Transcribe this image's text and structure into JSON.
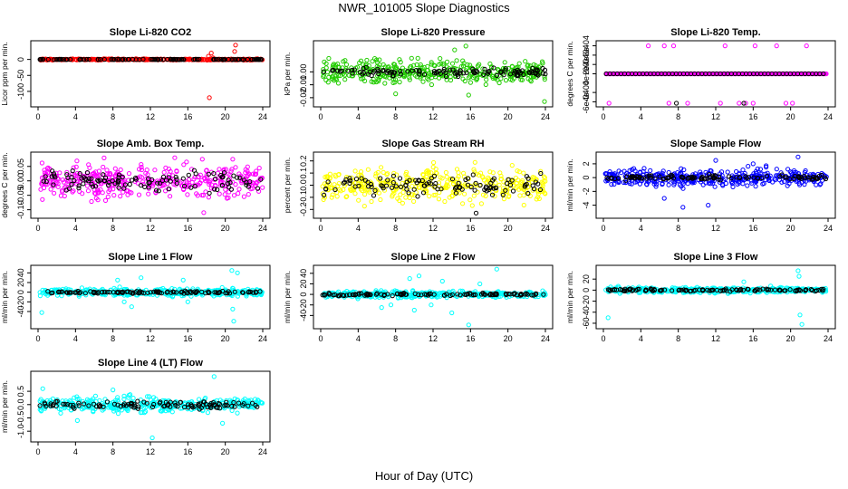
{
  "page": {
    "title": "NWR_101005  Slope Diagnostics",
    "xlabel": "Hour of Day (UTC)"
  },
  "colors": {
    "red": "#ff0000",
    "green": "#22cc00",
    "magenta": "#ff00ff",
    "yellow": "#ffff00",
    "blue": "#0000ff",
    "cyan": "#00ffff",
    "black": "#000000"
  },
  "chart_data": [
    {
      "type": "scatter",
      "title": "Slope Li-820 CO2",
      "ylabel": "Licor ppm per min.",
      "xlabel": "",
      "xlim": [
        0,
        24
      ],
      "ylim": [
        -140,
        50
      ],
      "x_ticks": [
        "0",
        "4",
        "8",
        "12",
        "16",
        "20",
        "24"
      ],
      "y_ticks": [
        "0",
        "-50",
        "-100"
      ],
      "y_tick_values": [
        0,
        -50,
        -100
      ],
      "series": [
        {
          "color": "red",
          "base": 0,
          "spread": 1.5,
          "points": [
            [
              18.3,
              -120
            ],
            [
              18.5,
              20
            ],
            [
              18.2,
              10
            ],
            [
              21.1,
              45
            ],
            [
              21.0,
              25
            ],
            [
              18.7,
              5
            ],
            [
              21.3,
              0
            ]
          ]
        },
        {
          "color": "black",
          "base": 0,
          "spread": 0.5,
          "points": []
        }
      ]
    },
    {
      "type": "scatter",
      "title": "Slope Li-820 Pressure",
      "ylabel": "kPa per min.",
      "xlabel": "",
      "xlim": [
        0,
        24
      ],
      "ylim": [
        -0.025,
        0.022
      ],
      "x_ticks": [
        "0",
        "4",
        "8",
        "12",
        "16",
        "20",
        "24"
      ],
      "y_ticks": [
        "0.00",
        "-0.01",
        "-0.02"
      ],
      "y_tick_values": [
        0.0,
        -0.01,
        -0.02
      ],
      "series": [
        {
          "color": "green",
          "base": 0,
          "spread": 0.007,
          "points": [
            [
              23.9,
              -0.023
            ],
            [
              15.5,
              0.02
            ],
            [
              14.3,
              0.017
            ],
            [
              15.8,
              -0.018
            ],
            [
              8.0,
              -0.017
            ],
            [
              0.8,
              -0.008
            ]
          ]
        },
        {
          "color": "black",
          "base": 0,
          "spread": 0.003,
          "points": []
        }
      ]
    },
    {
      "type": "scatter",
      "title": "Slope Li-820 Temp.",
      "ylabel": "degrees C per min.",
      "xlabel": "",
      "xlim": [
        0,
        24
      ],
      "ylim": [
        -0.00065,
        0.00065
      ],
      "x_ticks": [
        "0",
        "4",
        "8",
        "12",
        "16",
        "20",
        "24"
      ],
      "y_ticks": [
        "6e-04",
        "4e-04",
        "2e-04",
        "0e+00",
        "-4e-04",
        "-6e-04"
      ],
      "y_tick_values": [
        0.0006,
        0.0004,
        0.0002,
        0.0,
        -0.0004,
        -0.0006
      ],
      "series": [
        {
          "color": "magenta",
          "base": 0,
          "spread": 0,
          "points": [
            [
              6.5,
              0.0006
            ],
            [
              7.5,
              0.0006
            ],
            [
              13.0,
              0.0006
            ],
            [
              16.2,
              0.0006
            ],
            [
              18.5,
              0.0006
            ],
            [
              21.7,
              0.0006
            ],
            [
              7.0,
              -0.00063
            ],
            [
              9.0,
              -0.00063
            ],
            [
              12.5,
              -0.00063
            ],
            [
              14.5,
              -0.00063
            ],
            [
              15.2,
              -0.00063
            ],
            [
              16.0,
              -0.00063
            ],
            [
              19.5,
              -0.00063
            ],
            [
              20.2,
              -0.00063
            ],
            [
              4.8,
              0.0006
            ],
            [
              0.6,
              -0.00063
            ]
          ]
        },
        {
          "color": "black",
          "base": 0,
          "spread": 0,
          "points": [
            [
              7.8,
              -0.00063
            ],
            [
              15.0,
              -0.00063
            ]
          ]
        }
      ]
    },
    {
      "type": "scatter",
      "title": "Slope Amb. Box Temp.",
      "ylabel": "degrees C per min.",
      "xlabel": "",
      "xlim": [
        0,
        24
      ],
      "ylim": [
        -0.12,
        0.09
      ],
      "x_ticks": [
        "0",
        "4",
        "8",
        "12",
        "16",
        "20",
        "24"
      ],
      "y_ticks": [
        "0.05",
        "0.00",
        "-0.05",
        "-0.10"
      ],
      "y_tick_values": [
        0.05,
        0.0,
        -0.05,
        -0.1
      ],
      "series": [
        {
          "color": "magenta",
          "base": 0,
          "spread": 0.045,
          "points": [
            [
              17.7,
              -0.11
            ],
            [
              14.6,
              0.08
            ],
            [
              20.8,
              0.075
            ]
          ]
        },
        {
          "color": "black",
          "base": 0,
          "spread": 0.03,
          "points": []
        }
      ]
    },
    {
      "type": "scatter",
      "title": "Slope Gas Stream RH",
      "ylabel": "percent per min.",
      "xlabel": "",
      "xlim": [
        0,
        24
      ],
      "ylim": [
        -0.25,
        0.25
      ],
      "x_ticks": [
        "0",
        "4",
        "8",
        "12",
        "16",
        "20",
        "24"
      ],
      "y_ticks": [
        "0.2",
        "0.1",
        "0.0",
        "-0.1",
        "-0.2"
      ],
      "y_tick_values": [
        0.2,
        0.1,
        0.0,
        -0.1,
        -0.2
      ],
      "series": [
        {
          "color": "yellow",
          "base": 0,
          "spread": 0.11,
          "points": []
        },
        {
          "color": "black",
          "base": 0,
          "spread": 0.07,
          "points": [
            [
              16.6,
              -0.23
            ]
          ]
        }
      ]
    },
    {
      "type": "scatter",
      "title": "Slope Sample Flow",
      "ylabel": "ml/min per min.",
      "xlabel": "",
      "xlim": [
        0,
        24
      ],
      "ylim": [
        -5.5,
        3.3
      ],
      "x_ticks": [
        "0",
        "4",
        "8",
        "12",
        "16",
        "20",
        "24"
      ],
      "y_ticks": [
        "2",
        "0",
        "-2",
        "-4"
      ],
      "y_tick_values": [
        2,
        0,
        -2,
        -4
      ],
      "series": [
        {
          "color": "blue",
          "base": 0,
          "spread": 1.0,
          "points": [
            [
              8.5,
              -4.3
            ],
            [
              11.2,
              -4.0
            ],
            [
              20.8,
              3.0
            ],
            [
              12.0,
              2.5
            ],
            [
              6.5,
              -3.0
            ],
            [
              16.0,
              2.0
            ]
          ]
        },
        {
          "color": "black",
          "base": 0,
          "spread": 0.3,
          "points": []
        }
      ]
    },
    {
      "type": "scatter",
      "title": "Slope Line 1 Flow",
      "ylabel": "ml/min per min.",
      "xlabel": "",
      "xlim": [
        0,
        24
      ],
      "ylim": [
        -70,
        50
      ],
      "x_ticks": [
        "0",
        "4",
        "8",
        "12",
        "16",
        "20",
        "24"
      ],
      "y_ticks": [
        "40",
        "20",
        "0",
        "-20",
        "-40"
      ],
      "y_tick_values": [
        40,
        20,
        0,
        -20,
        -40
      ],
      "series": [
        {
          "color": "cyan",
          "base": 0,
          "spread": 6,
          "points": [
            [
              20.7,
              45
            ],
            [
              21.3,
              40
            ],
            [
              20.9,
              -60
            ],
            [
              0.4,
              -42
            ],
            [
              20.8,
              -35
            ],
            [
              8.5,
              25
            ],
            [
              10.0,
              -30
            ],
            [
              15.5,
              25
            ],
            [
              16.0,
              -20
            ],
            [
              11.0,
              30
            ],
            [
              9.2,
              -20
            ]
          ]
        },
        {
          "color": "black",
          "base": 0,
          "spread": 2,
          "points": []
        }
      ]
    },
    {
      "type": "scatter",
      "title": "Slope Line 2 Flow",
      "ylabel": "ml/min per min.",
      "xlabel": "",
      "xlim": [
        0,
        24
      ],
      "ylim": [
        -60,
        50
      ],
      "x_ticks": [
        "0",
        "4",
        "8",
        "12",
        "16",
        "20",
        "24"
      ],
      "y_ticks": [
        "40",
        "20",
        "0",
        "-20",
        "-40"
      ],
      "y_tick_values": [
        40,
        20,
        0,
        -20,
        -40
      ],
      "series": [
        {
          "color": "cyan",
          "base": 0,
          "spread": 5,
          "points": [
            [
              18.8,
              48
            ],
            [
              15.8,
              -58
            ],
            [
              9.5,
              30
            ],
            [
              10.5,
              35
            ],
            [
              6.5,
              -25
            ],
            [
              7.5,
              -20
            ],
            [
              10.0,
              -30
            ],
            [
              13.0,
              25
            ],
            [
              14.0,
              -35
            ],
            [
              11.8,
              -20
            ],
            [
              17.0,
              20
            ]
          ]
        },
        {
          "color": "black",
          "base": 0,
          "spread": 2,
          "points": []
        }
      ]
    },
    {
      "type": "scatter",
      "title": "Slope Line 3 Flow",
      "ylabel": "ml/min per min.",
      "xlabel": "",
      "xlim": [
        0,
        24
      ],
      "ylim": [
        -65,
        40
      ],
      "x_ticks": [
        "0",
        "4",
        "8",
        "12",
        "16",
        "20",
        "24"
      ],
      "y_ticks": [
        "20",
        "0",
        "-20",
        "-40",
        "-60"
      ],
      "y_tick_values": [
        20,
        0,
        -20,
        -40,
        -60
      ],
      "series": [
        {
          "color": "cyan",
          "base": 0,
          "spread": 4,
          "points": [
            [
              0.5,
              -50
            ],
            [
              20.8,
              35
            ],
            [
              21.2,
              -62
            ],
            [
              21.0,
              -45
            ],
            [
              20.9,
              25
            ],
            [
              15.0,
              15
            ]
          ]
        },
        {
          "color": "black",
          "base": 0,
          "spread": 2,
          "points": []
        }
      ]
    },
    {
      "type": "scatter",
      "title": "Slope Line 4 (LT) Flow",
      "ylabel": "ml/min per min.",
      "xlabel": "",
      "xlim": [
        0,
        24
      ],
      "ylim": [
        -1.3,
        1.15
      ],
      "x_ticks": [
        "0",
        "4",
        "8",
        "12",
        "16",
        "20",
        "24"
      ],
      "y_ticks": [
        "0.5",
        "0.0",
        "-0.5",
        "-1.0"
      ],
      "y_tick_values": [
        0.5,
        0.0,
        -0.5,
        -1.0
      ],
      "series": [
        {
          "color": "cyan",
          "base": 0,
          "spread": 0.22,
          "points": [
            [
              12.2,
              -1.25
            ],
            [
              18.8,
              1.05
            ],
            [
              4.2,
              -0.6
            ],
            [
              19.7,
              -0.7
            ],
            [
              0.5,
              0.6
            ],
            [
              8.0,
              0.55
            ]
          ]
        },
        {
          "color": "black",
          "base": 0,
          "spread": 0.12,
          "points": []
        }
      ]
    }
  ]
}
